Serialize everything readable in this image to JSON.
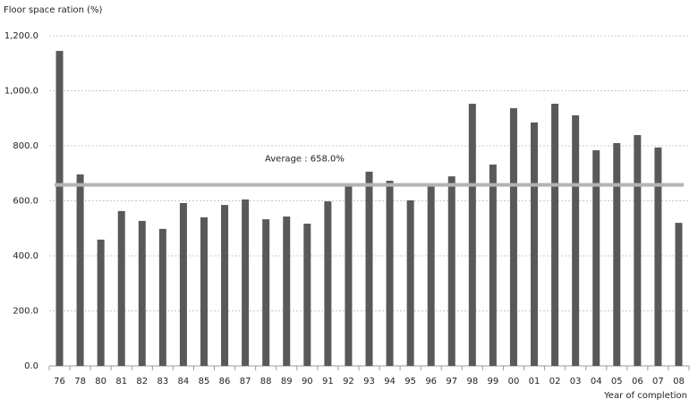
{
  "chart_data": {
    "type": "bar",
    "y_axis_label": "Floor space ration (%)",
    "x_axis_label": "Year of completion",
    "categories": [
      "76",
      "78",
      "80",
      "81",
      "82",
      "83",
      "84",
      "85",
      "86",
      "87",
      "88",
      "89",
      "90",
      "91",
      "92",
      "93",
      "94",
      "95",
      "96",
      "97",
      "98",
      "99",
      "00",
      "01",
      "02",
      "03",
      "04",
      "05",
      "06",
      "07",
      "08"
    ],
    "values": [
      1145,
      696,
      459,
      563,
      527,
      498,
      592,
      540,
      585,
      605,
      533,
      543,
      517,
      598,
      657,
      706,
      673,
      602,
      654,
      689,
      953,
      732,
      937,
      885,
      953,
      911,
      784,
      810,
      839,
      794,
      520
    ],
    "color": "#595959",
    "ylim": [
      0,
      1200
    ],
    "yticks": [
      {
        "value": 0,
        "label": "0.0"
      },
      {
        "value": 200,
        "label": "200.0"
      },
      {
        "value": 400,
        "label": "400.0"
      },
      {
        "value": 600,
        "label": "600.0"
      },
      {
        "value": 800,
        "label": "800.0"
      },
      {
        "value": 1000,
        "label": "1,000.0"
      },
      {
        "value": 1200,
        "label": "1,200.0"
      }
    ],
    "grid": true,
    "average": {
      "value": 658,
      "label": "Average : 658.0%",
      "color": "#b3b3b3"
    }
  }
}
